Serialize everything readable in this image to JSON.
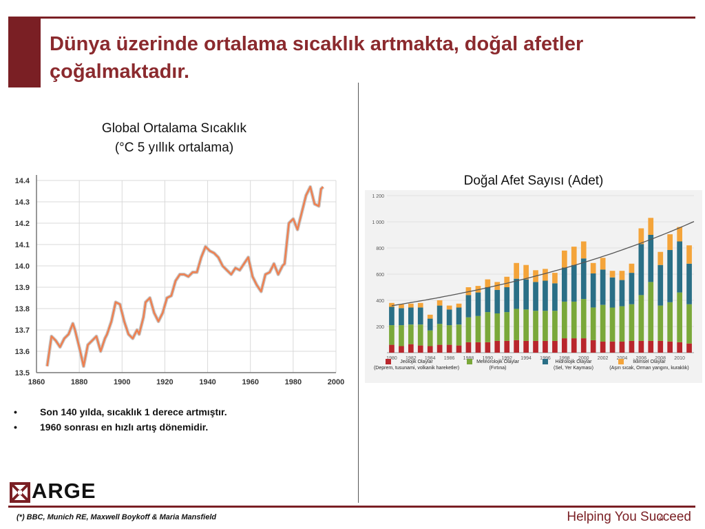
{
  "slide": {
    "title": "Dünya üzerinde ortalama sıcaklık artmakta, doğal afetler çoğalmaktadır.",
    "bullets": [
      "Son 140 yılda, sıcaklık 1 derece artmıştır.",
      "1960 sonrası en hızlı artış dönemidir."
    ],
    "logo_text": "ARGE",
    "source": "(*) BBC, Munich RE, Maxwell Boykoff & Maria Mansfield",
    "tagline": "Helping You Succeed",
    "page_number": "4"
  },
  "colors": {
    "brand": "#7a1f24",
    "title": "#8b2a2e",
    "temp_line": "#ee7f4f",
    "geophysical": "#b9262c",
    "meteorological": "#7aa83a",
    "hydrological": "#2a6f86",
    "climatological": "#f4a43a"
  },
  "chart_data": [
    {
      "type": "line",
      "title": "Global Ortalama Sıcaklık",
      "subtitle": "(°C 5 yıllık ortalama)",
      "xlim": [
        1860,
        2000
      ],
      "ylim": [
        13.5,
        14.4
      ],
      "xticks": [
        1860,
        1880,
        1900,
        1920,
        1940,
        1960,
        1980,
        2000
      ],
      "yticks": [
        13.5,
        13.6,
        13.7,
        13.8,
        13.9,
        14.0,
        14.1,
        14.2,
        14.3,
        14.4
      ],
      "ytick_labels": [
        "13.5",
        "13.6",
        "13.7",
        "13.8",
        "13.9",
        "14.0",
        "14.1",
        "14.2",
        "14.3",
        "14.4"
      ],
      "grid": true,
      "x": [
        1865,
        1867,
        1869,
        1871,
        1873,
        1875,
        1877,
        1878,
        1880,
        1882,
        1884,
        1886,
        1888,
        1890,
        1892,
        1893,
        1895,
        1897,
        1899,
        1901,
        1903,
        1905,
        1907,
        1908,
        1910,
        1911,
        1913,
        1915,
        1917,
        1919,
        1921,
        1923,
        1925,
        1927,
        1929,
        1931,
        1933,
        1935,
        1937,
        1939,
        1941,
        1943,
        1945,
        1947,
        1949,
        1951,
        1953,
        1955,
        1957,
        1959,
        1961,
        1963,
        1965,
        1967,
        1969,
        1971,
        1973,
        1975,
        1976,
        1978,
        1980,
        1982,
        1984,
        1986,
        1988,
        1990,
        1992,
        1993,
        1994
      ],
      "y": [
        13.53,
        13.67,
        13.65,
        13.62,
        13.66,
        13.68,
        13.73,
        13.7,
        13.62,
        13.53,
        13.63,
        13.65,
        13.67,
        13.6,
        13.66,
        13.68,
        13.74,
        13.83,
        13.82,
        13.74,
        13.68,
        13.66,
        13.7,
        13.68,
        13.76,
        13.83,
        13.85,
        13.78,
        13.74,
        13.78,
        13.85,
        13.86,
        13.93,
        13.96,
        13.96,
        13.95,
        13.97,
        13.97,
        14.04,
        14.09,
        14.07,
        14.06,
        14.04,
        14.0,
        13.98,
        13.96,
        13.99,
        13.98,
        14.01,
        14.04,
        13.95,
        13.91,
        13.88,
        13.96,
        13.97,
        14.01,
        13.96,
        14.0,
        14.01,
        14.2,
        14.22,
        14.17,
        14.25,
        14.33,
        14.37,
        14.29,
        14.28,
        14.36,
        14.37
      ]
    },
    {
      "type": "bar",
      "stacked": true,
      "title": "Doğal Afet Sayısı (Adet)",
      "ylim": [
        0,
        1200
      ],
      "yticks": [
        200,
        400,
        600,
        800,
        1000,
        1200
      ],
      "ytick_labels": [
        "200",
        "400",
        "600",
        "800",
        "1 000",
        "1 200"
      ],
      "xtick_labels": [
        "1980",
        "1982",
        "1984",
        "1986",
        "1988",
        "1990",
        "1992",
        "1994",
        "1996",
        "1998",
        "2000",
        "2002",
        "2004",
        "2006",
        "2008",
        "2010"
      ],
      "categories": [
        "1980",
        "1981",
        "1982",
        "1983",
        "1984",
        "1985",
        "1986",
        "1987",
        "1988",
        "1989",
        "1990",
        "1991",
        "1992",
        "1993",
        "1994",
        "1995",
        "1996",
        "1997",
        "1998",
        "1999",
        "2000",
        "2001",
        "2002",
        "2003",
        "2004",
        "2005",
        "2006",
        "2007",
        "2008",
        "2009",
        "2010",
        "2011"
      ],
      "trendline": true,
      "series": [
        {
          "name": "Jeolojik Olaylar",
          "note": "(Deprem, tusunami, volkanik hareketler)",
          "values": [
            60,
            50,
            65,
            55,
            50,
            60,
            60,
            55,
            80,
            80,
            80,
            90,
            90,
            95,
            90,
            90,
            90,
            90,
            110,
            110,
            110,
            95,
            85,
            85,
            85,
            90,
            90,
            90,
            90,
            85,
            80,
            70
          ]
        },
        {
          "name": "Meteorolojik Olaylar",
          "note": "(Fırtına)",
          "values": [
            150,
            160,
            150,
            160,
            120,
            160,
            150,
            160,
            190,
            200,
            230,
            210,
            220,
            240,
            240,
            230,
            230,
            230,
            280,
            280,
            300,
            250,
            280,
            260,
            270,
            280,
            350,
            450,
            270,
            300,
            380,
            300
          ]
        },
        {
          "name": "Hidrolojik Olaylar",
          "note": "(Sel, Yer Kayması)",
          "values": [
            140,
            130,
            130,
            130,
            90,
            140,
            120,
            130,
            170,
            180,
            190,
            180,
            190,
            230,
            230,
            220,
            230,
            210,
            260,
            280,
            310,
            260,
            270,
            230,
            200,
            240,
            390,
            360,
            310,
            400,
            390,
            310
          ]
        },
        {
          "name": "İklimsel Olaylar",
          "note": "(Aşırı sıcak, Orman yangını, kuraklık)",
          "values": [
            30,
            30,
            30,
            35,
            30,
            40,
            30,
            30,
            60,
            50,
            60,
            60,
            80,
            120,
            110,
            90,
            90,
            80,
            130,
            140,
            130,
            80,
            90,
            50,
            70,
            70,
            120,
            130,
            100,
            120,
            110,
            140
          ]
        }
      ]
    }
  ]
}
